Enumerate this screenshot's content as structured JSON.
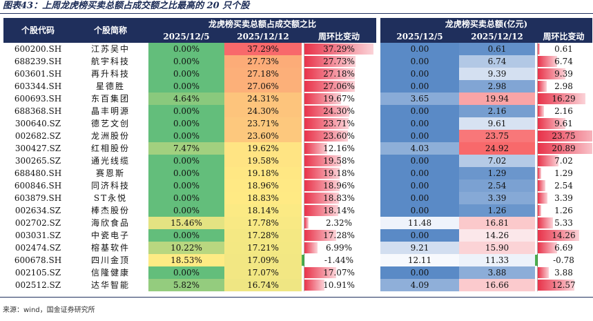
{
  "title": "图表43：上周龙虎榜买卖总额占成交额之比最高的 20 只个股",
  "source": "来源：wind，国金证券研究所",
  "headers": {
    "code": "个股代码",
    "name": "个股简称",
    "group1": "龙虎榜买卖总额占成交额之比",
    "group2": "龙虎榜买卖总额(亿元)",
    "d1": "2025/12/5",
    "d2": "2025/12/12",
    "chg": "周环比变动"
  },
  "rows": [
    {
      "code": "600200.SH",
      "name": "江苏吴中",
      "r1": "0.00%",
      "r2": "37.29%",
      "rc": "37.29%",
      "rcv": 37.29,
      "a1": "0.00",
      "a2": "0.61",
      "ac": "0.61",
      "acv": 0.61,
      "r1v": 0.0,
      "r2v": 37.29,
      "a1v": 0.0,
      "a2v": 0.61
    },
    {
      "code": "688239.SH",
      "name": "航宇科技",
      "r1": "0.00%",
      "r2": "27.73%",
      "rc": "27.73%",
      "rcv": 27.73,
      "a1": "0.00",
      "a2": "6.74",
      "ac": "6.74",
      "acv": 6.74,
      "r1v": 0.0,
      "r2v": 27.73,
      "a1v": 0.0,
      "a2v": 6.74
    },
    {
      "code": "603601.SH",
      "name": "再升科技",
      "r1": "0.00%",
      "r2": "27.18%",
      "rc": "27.18%",
      "rcv": 27.18,
      "a1": "0.00",
      "a2": "9.39",
      "ac": "9.39",
      "acv": 9.39,
      "r1v": 0.0,
      "r2v": 27.18,
      "a1v": 0.0,
      "a2v": 9.39
    },
    {
      "code": "603344.SH",
      "name": "星德胜",
      "r1": "0.00%",
      "r2": "27.06%",
      "rc": "27.06%",
      "rcv": 27.06,
      "a1": "0.00",
      "a2": "2.98",
      "ac": "2.98",
      "acv": 2.98,
      "r1v": 0.0,
      "r2v": 27.06,
      "a1v": 0.0,
      "a2v": 2.98
    },
    {
      "code": "600693.SH",
      "name": "东百集团",
      "r1": "4.64%",
      "r2": "24.31%",
      "rc": "19.67%",
      "rcv": 19.67,
      "a1": "3.65",
      "a2": "19.94",
      "ac": "16.29",
      "acv": 16.29,
      "r1v": 4.64,
      "r2v": 24.31,
      "a1v": 3.65,
      "a2v": 19.94
    },
    {
      "code": "688368.SH",
      "name": "晶丰明源",
      "r1": "0.00%",
      "r2": "24.30%",
      "rc": "24.30%",
      "rcv": 24.3,
      "a1": "0.00",
      "a2": "2.16",
      "ac": "2.16",
      "acv": 2.16,
      "r1v": 0.0,
      "r2v": 24.3,
      "a1v": 0.0,
      "a2v": 2.16
    },
    {
      "code": "300640.SZ",
      "name": "德艺文创",
      "r1": "0.00%",
      "r2": "23.71%",
      "rc": "23.71%",
      "rcv": 23.71,
      "a1": "0.00",
      "a2": "9.61",
      "ac": "9.61",
      "acv": 9.61,
      "r1v": 0.0,
      "r2v": 23.71,
      "a1v": 0.0,
      "a2v": 9.61
    },
    {
      "code": "002682.SZ",
      "name": "龙洲股份",
      "r1": "0.00%",
      "r2": "23.60%",
      "rc": "23.60%",
      "rcv": 23.6,
      "a1": "0.00",
      "a2": "23.75",
      "ac": "23.75",
      "acv": 23.75,
      "r1v": 0.0,
      "r2v": 23.6,
      "a1v": 0.0,
      "a2v": 23.75
    },
    {
      "code": "300427.SZ",
      "name": "红相股份",
      "r1": "7.47%",
      "r2": "19.62%",
      "rc": "12.16%",
      "rcv": 12.16,
      "a1": "4.03",
      "a2": "24.92",
      "ac": "20.89",
      "acv": 20.89,
      "r1v": 7.47,
      "r2v": 19.62,
      "a1v": 4.03,
      "a2v": 24.92
    },
    {
      "code": "300265.SZ",
      "name": "通光线缆",
      "r1": "0.00%",
      "r2": "19.58%",
      "rc": "19.58%",
      "rcv": 19.58,
      "a1": "0.00",
      "a2": "7.02",
      "ac": "7.02",
      "acv": 7.02,
      "r1v": 0.0,
      "r2v": 19.58,
      "a1v": 0.0,
      "a2v": 7.02
    },
    {
      "code": "688480.SH",
      "name": "赛恩斯",
      "r1": "0.00%",
      "r2": "19.18%",
      "rc": "19.18%",
      "rcv": 19.18,
      "a1": "0.00",
      "a2": "1.29",
      "ac": "1.29",
      "acv": 1.29,
      "r1v": 0.0,
      "r2v": 19.18,
      "a1v": 0.0,
      "a2v": 1.29
    },
    {
      "code": "600846.SH",
      "name": "同济科技",
      "r1": "0.00%",
      "r2": "18.96%",
      "rc": "18.96%",
      "rcv": 18.96,
      "a1": "0.00",
      "a2": "2.54",
      "ac": "2.54",
      "acv": 2.54,
      "r1v": 0.0,
      "r2v": 18.96,
      "a1v": 0.0,
      "a2v": 2.54
    },
    {
      "code": "603879.SH",
      "name": "ST永悦",
      "r1": "0.00%",
      "r2": "18.83%",
      "rc": "18.83%",
      "rcv": 18.83,
      "a1": "0.00",
      "a2": "3.39",
      "ac": "3.39",
      "acv": 3.39,
      "r1v": 0.0,
      "r2v": 18.83,
      "a1v": 0.0,
      "a2v": 3.39
    },
    {
      "code": "002634.SZ",
      "name": "棒杰股份",
      "r1": "0.00%",
      "r2": "18.14%",
      "rc": "18.14%",
      "rcv": 18.14,
      "a1": "0.00",
      "a2": "1.26",
      "ac": "1.26",
      "acv": 1.26,
      "r1v": 0.0,
      "r2v": 18.14,
      "a1v": 0.0,
      "a2v": 1.26
    },
    {
      "code": "002702.SZ",
      "name": "海欣食品",
      "r1": "15.46%",
      "r2": "17.78%",
      "rc": "2.32%",
      "rcv": 2.32,
      "a1": "11.48",
      "a2": "16.81",
      "ac": "5.33",
      "acv": 5.33,
      "r1v": 15.46,
      "r2v": 17.78,
      "a1v": 11.48,
      "a2v": 16.81
    },
    {
      "code": "003031.SZ",
      "name": "中瓷电子",
      "r1": "0.00%",
      "r2": "17.28%",
      "rc": "17.28%",
      "rcv": 17.28,
      "a1": "0.00",
      "a2": "14.26",
      "ac": "14.26",
      "acv": 14.26,
      "r1v": 0.0,
      "r2v": 17.28,
      "a1v": 0.0,
      "a2v": 14.26
    },
    {
      "code": "002474.SZ",
      "name": "榕基软件",
      "r1": "10.22%",
      "r2": "17.21%",
      "rc": "6.99%",
      "rcv": 6.99,
      "a1": "9.21",
      "a2": "15.90",
      "ac": "6.69",
      "acv": 6.69,
      "r1v": 10.22,
      "r2v": 17.21,
      "a1v": 9.21,
      "a2v": 15.9
    },
    {
      "code": "600678.SH",
      "name": "四川金顶",
      "r1": "18.53%",
      "r2": "17.09%",
      "rc": "-1.44%",
      "rcv": -1.44,
      "a1": "12.11",
      "a2": "11.33",
      "ac": "-0.78",
      "acv": -0.78,
      "r1v": 18.53,
      "r2v": 17.09,
      "a1v": 12.11,
      "a2v": 11.33
    },
    {
      "code": "002105.SZ",
      "name": "信隆健康",
      "r1": "0.00%",
      "r2": "17.07%",
      "rc": "17.07%",
      "rcv": 17.07,
      "a1": "0.00",
      "a2": "3.88",
      "ac": "3.88",
      "acv": 3.88,
      "r1v": 0.0,
      "r2v": 17.07,
      "a1v": 0.0,
      "a2v": 3.88
    },
    {
      "code": "002512.SZ",
      "name": "达华智能",
      "r1": "5.82%",
      "r2": "16.74%",
      "rc": "10.91%",
      "rcv": 10.91,
      "a1": "4.09",
      "a2": "16.66",
      "ac": "12.57",
      "acv": 12.57,
      "r1v": 5.82,
      "r2v": 16.74,
      "a1v": 4.09,
      "a2v": 16.66
    }
  ],
  "colors": {
    "header_bg": "#1f2f5c",
    "bar_pos": "#e8334a",
    "bar_neg": "#4caf50"
  }
}
